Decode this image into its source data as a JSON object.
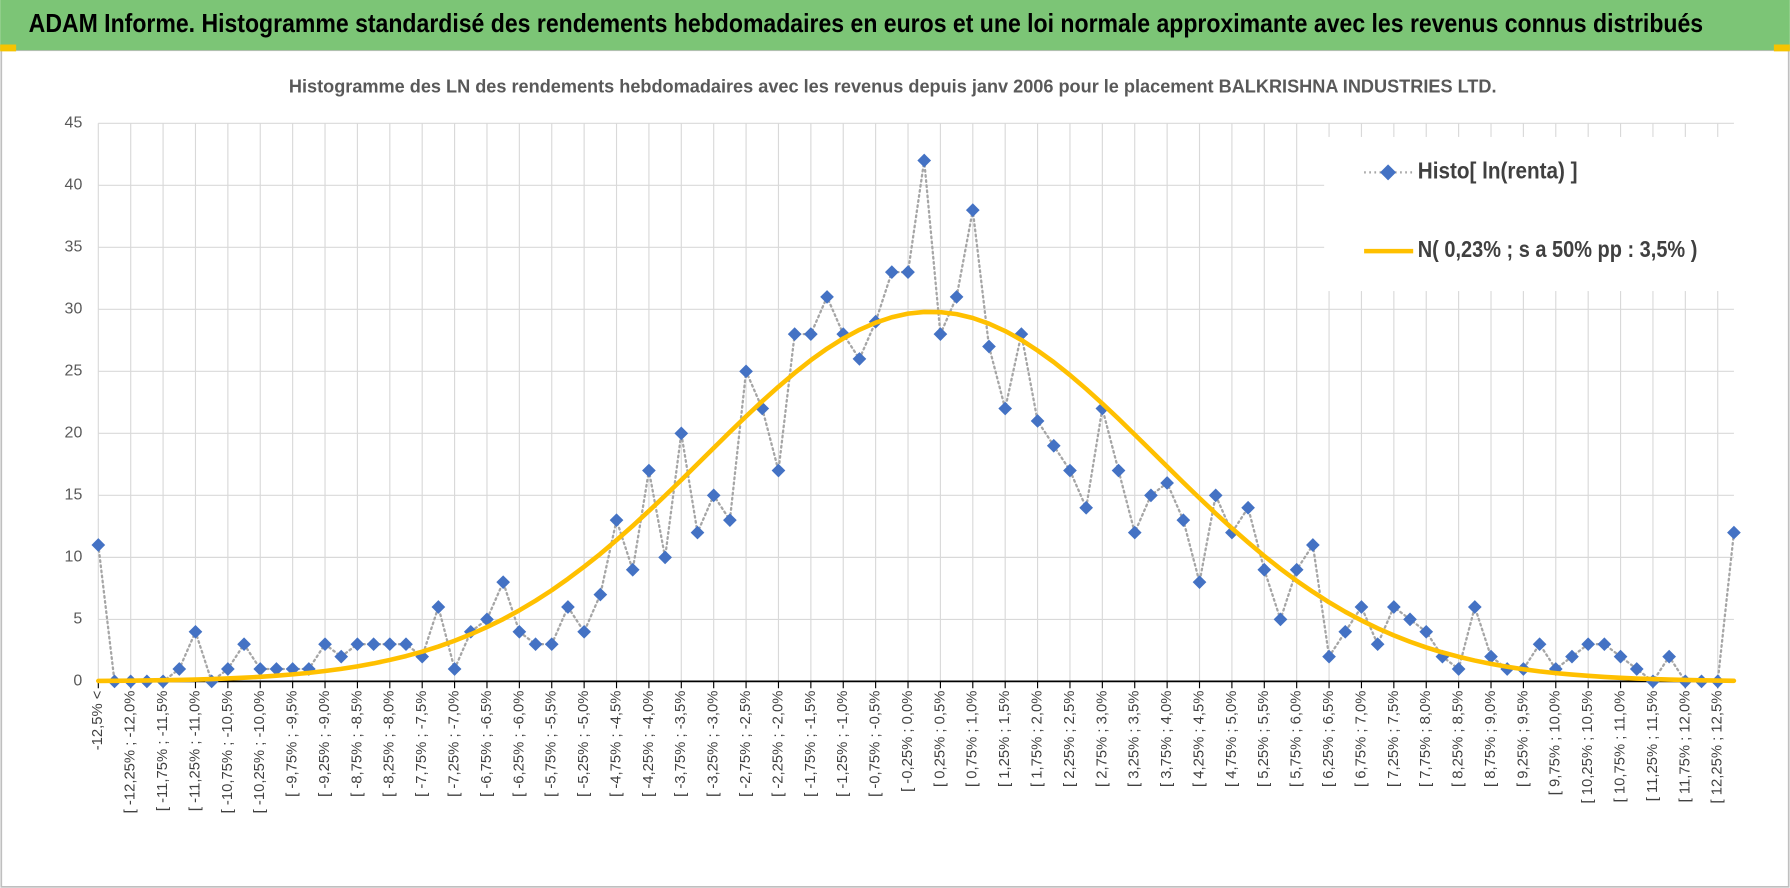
{
  "header": {
    "title": "ADAM Informe. Histogramme standardisé des rendements hebdomadaires en euros et une loi normale approximante avec les revenus connus distribués"
  },
  "chart_data": {
    "type": "line",
    "title": "Histogramme des LN des rendements hebdomadaires avec les revenus depuis janv 2006 pour le placement BALKRISHNA INDUSTRIES LTD.",
    "categories": [
      "-12,5% <",
      null,
      "[ -12,25% ; -12,0%",
      null,
      "[ -11,75% ; -11,5%",
      null,
      "[ -11,25% ; -11,0%",
      null,
      "[ -10,75% ; -10,5%",
      null,
      "[ -10,25% ; -10,0%",
      null,
      "[ -9,75% ; -9,5%",
      null,
      "[ -9,25% ; -9,0%",
      null,
      "[ -8,75% ; -8,5%",
      null,
      "[ -8,25% ; -8,0%",
      null,
      "[ -7,75% ; -7,5%",
      null,
      "[ -7,25% ; -7,0%",
      null,
      "[ -6,75% ; -6,5%",
      null,
      "[ -6,25% ; -6,0%",
      null,
      "[ -5,75% ; -5,5%",
      null,
      "[ -5,25% ; -5,0%",
      null,
      "[ -4,75% ; -4,5%",
      null,
      "[ -4,25% ; -4,0%",
      null,
      "[ -3,75% ; -3,5%",
      null,
      "[ -3,25% ; -3,0%",
      null,
      "[ -2,75% ; -2,5%",
      null,
      "[ -2,25% ; -2,0%",
      null,
      "[ -1,75% ; -1,5%",
      null,
      "[ -1,25% ; -1,0%",
      null,
      "[ -0,75% ; -0,5%",
      null,
      "[ -0,25% ; 0,0%",
      null,
      "[ 0,25% ; 0,5%",
      null,
      "[ 0,75% ; 1,0%",
      null,
      "[ 1,25% ; 1,5%",
      null,
      "[ 1,75% ; 2,0%",
      null,
      "[ 2,25% ; 2,5%",
      null,
      "[ 2,75% ; 3,0%",
      null,
      "[ 3,25% ; 3,5%",
      null,
      "[ 3,75% ; 4,0%",
      null,
      "[ 4,25% ; 4,5%",
      null,
      "[ 4,75% ; 5,0%",
      null,
      "[ 5,25% ; 5,5%",
      null,
      "[ 5,75% ; 6,0%",
      null,
      "[ 6,25% ; 6,5%",
      null,
      "[ 6,75% ; 7,0%",
      null,
      "[ 7,25% ; 7,5%",
      null,
      "[ 7,75% ; 8,0%",
      null,
      "[ 8,25% ; 8,5%",
      null,
      "[ 8,75% ; 9,0%",
      null,
      "[ 9,25% ; 9,5%",
      null,
      "[ 9,75% ; 10,0%",
      null,
      "[ 10,25% ; 10,5%",
      null,
      "[ 10,75% ; 11,0%",
      null,
      "[ 11,25% ; 11,5%",
      null,
      "[ 11,75% ; 12,0%",
      null,
      "[ 12,25% ; 12,5%",
      null
    ],
    "series": [
      {
        "name": "Histo[ ln(renta) ]",
        "color": "#4472c4",
        "line_color": "#a6a6a6",
        "line_style": "dotted",
        "marker": "diamond",
        "values": [
          11,
          0,
          0,
          0,
          0,
          1,
          4,
          0,
          1,
          3,
          1,
          1,
          1,
          1,
          3,
          2,
          3,
          3,
          3,
          3,
          2,
          6,
          1,
          4,
          5,
          8,
          4,
          3,
          3,
          6,
          4,
          7,
          13,
          9,
          17,
          10,
          20,
          12,
          15,
          13,
          25,
          22,
          17,
          28,
          28,
          31,
          28,
          26,
          29,
          33,
          33,
          42,
          28,
          31,
          38,
          27,
          22,
          28,
          21,
          19,
          17,
          14,
          22,
          17,
          12,
          15,
          16,
          13,
          8,
          15,
          12,
          14,
          9,
          5,
          9,
          11,
          2,
          4,
          6,
          3,
          6,
          5,
          4,
          2,
          1,
          6,
          2,
          1,
          1,
          3,
          1,
          2,
          3,
          3,
          2,
          1,
          0,
          2,
          0,
          0,
          0,
          12
        ]
      },
      {
        "name": "N( 0,23% ; s a 50% pp : 3,5% )",
        "color": "#ffc000",
        "values": [
          0.04,
          0.05,
          0.06,
          0.08,
          0.1,
          0.12,
          0.15,
          0.19,
          0.24,
          0.3,
          0.37,
          0.46,
          0.57,
          0.69,
          0.84,
          1.01,
          1.21,
          1.45,
          1.73,
          2.04,
          2.4,
          2.81,
          3.28,
          3.8,
          4.38,
          5.02,
          5.73,
          6.51,
          7.35,
          8.27,
          9.25,
          10.28,
          11.39,
          12.54,
          13.74,
          14.98,
          16.24,
          17.53,
          18.82,
          20.11,
          21.37,
          22.59,
          23.76,
          24.87,
          25.9,
          26.83,
          27.65,
          28.35,
          28.92,
          29.36,
          29.65,
          29.79,
          29.77,
          29.61,
          29.3,
          28.84,
          28.25,
          27.53,
          26.68,
          25.74,
          24.7,
          23.58,
          22.4,
          21.17,
          19.9,
          18.62,
          17.33,
          16.04,
          14.78,
          13.54,
          12.35,
          11.21,
          10.11,
          9.08,
          8.11,
          7.22,
          6.38,
          5.61,
          4.92,
          4.28,
          3.71,
          3.2,
          2.74,
          2.34,
          1.99,
          1.68,
          1.41,
          1.18,
          0.98,
          0.81,
          0.67,
          0.55,
          0.45,
          0.36,
          0.29,
          0.23,
          0.19,
          0.15,
          0.12,
          0.09,
          0.07,
          0.05
        ]
      }
    ],
    "ylim": [
      0,
      45
    ],
    "yticks": [
      0,
      5,
      10,
      15,
      20,
      25,
      30,
      35,
      40,
      45
    ],
    "grid": true,
    "legend": "top-right"
  }
}
